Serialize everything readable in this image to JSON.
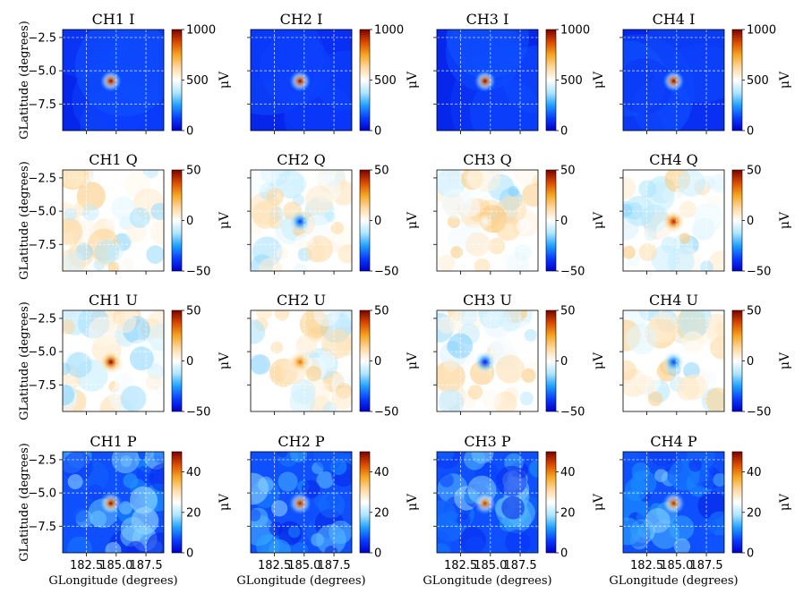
{
  "chart_data": {
    "type": "heatmap",
    "rows": [
      "I",
      "Q",
      "U",
      "P"
    ],
    "columns": [
      "CH1",
      "CH2",
      "CH3",
      "CH4"
    ],
    "titles": [
      [
        "CH1 I",
        "CH2 I",
        "CH3 I",
        "CH4 I"
      ],
      [
        "CH1 Q",
        "CH2 Q",
        "CH3 Q",
        "CH4 Q"
      ],
      [
        "CH1 U",
        "CH2 U",
        "CH3 U",
        "CH4 U"
      ],
      [
        "CH1 P",
        "CH2 P",
        "CH3 P",
        "CH4 P"
      ]
    ],
    "xlabel": "GLongitude (degrees)",
    "ylabel": "GLatitude (degrees)",
    "xlim": [
      180.5,
      189.0
    ],
    "ylim": [
      -9.5,
      -1.9
    ],
    "xticks": [
      182.5,
      185.0,
      187.5
    ],
    "xtick_labels": [
      "182.5",
      "185.0",
      "187.5"
    ],
    "yticks": [
      -2.5,
      -5.0,
      -7.5
    ],
    "ytick_labels": [
      "−2.5",
      "−5.0",
      "−7.5"
    ],
    "colorbar_unit": "μV",
    "colorbar_ranges": {
      "I": {
        "min": 0,
        "max": 1000,
        "ticks": [
          "0",
          "500",
          "1000"
        ]
      },
      "Q": {
        "min": -50,
        "max": 50,
        "ticks": [
          "−50",
          "0",
          "50"
        ]
      },
      "U": {
        "min": -50,
        "max": 50,
        "ticks": [
          "−50",
          "0",
          "50"
        ]
      },
      "P": {
        "min": 0,
        "max": 50,
        "ticks": [
          "0",
          "20",
          "40"
        ]
      }
    },
    "source_position": {
      "glon": 184.55,
      "glat": -5.78
    },
    "source_peak_uV": {
      "I": [
        1000,
        1000,
        1000,
        1000
      ],
      "Q": [
        3,
        -40,
        -2,
        45
      ],
      "U": [
        50,
        33,
        -45,
        -38
      ],
      "P": [
        50,
        48,
        46,
        47
      ]
    },
    "colormap": [
      "#0000c8",
      "#0a3cff",
      "#1fa0ff",
      "#aee6ff",
      "#ffffff",
      "#ffd9a0",
      "#f5a623",
      "#d94a00",
      "#7a0000"
    ]
  }
}
